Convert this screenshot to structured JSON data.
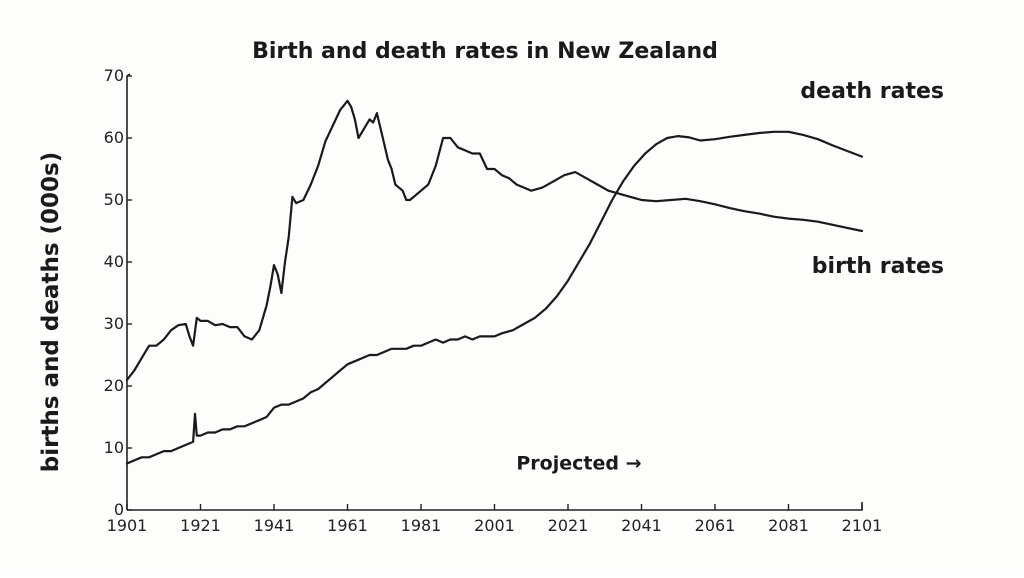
{
  "chart_data": {
    "type": "line",
    "title": "Birth and death rates in New Zealand",
    "xlabel": "",
    "ylabel": "births and deaths (000s)",
    "xlim": [
      1901,
      2101
    ],
    "ylim": [
      0,
      70
    ],
    "x_ticks": [
      "1901",
      "1921",
      "1941",
      "1961",
      "1981",
      "2001",
      "2021",
      "2041",
      "2061",
      "2081",
      "2101"
    ],
    "y_ticks": [
      "0",
      "10",
      "20",
      "30",
      "40",
      "50",
      "60",
      "70"
    ],
    "grid": false,
    "legend": "none",
    "annotation": "Projected →",
    "annotation_x": 2041,
    "series": [
      {
        "name": "birth rates",
        "label_position": "right",
        "x": [
          1901,
          1903,
          1905,
          1907,
          1909,
          1911,
          1913,
          1915,
          1917,
          1918,
          1919,
          1920,
          1921,
          1923,
          1925,
          1927,
          1929,
          1931,
          1933,
          1935,
          1937,
          1939,
          1940,
          1941,
          1942,
          1943,
          1944,
          1945,
          1946,
          1947,
          1949,
          1951,
          1953,
          1955,
          1957,
          1959,
          1961,
          1962,
          1963,
          1964,
          1965,
          1966,
          1967,
          1968,
          1969,
          1970,
          1971,
          1972,
          1973,
          1974,
          1975,
          1976,
          1977,
          1978,
          1979,
          1981,
          1983,
          1985,
          1987,
          1989,
          1991,
          1993,
          1995,
          1997,
          1999,
          2001,
          2003,
          2005,
          2007,
          2009,
          2011,
          2014,
          2017,
          2020,
          2023,
          2026,
          2029,
          2032,
          2035,
          2038,
          2041,
          2045,
          2049,
          2053,
          2057,
          2061,
          2065,
          2069,
          2073,
          2077,
          2081,
          2085,
          2089,
          2093,
          2097,
          2101
        ],
        "values": [
          21,
          22.5,
          24.5,
          26.5,
          26.5,
          27.5,
          29,
          29.8,
          30,
          28,
          26.5,
          31,
          30.5,
          30.5,
          29.8,
          30,
          29.5,
          29.5,
          28,
          27.5,
          29,
          33,
          36,
          39.5,
          38,
          35,
          40,
          44,
          50.5,
          49.5,
          50,
          52.5,
          55.5,
          59.5,
          62,
          64.5,
          66,
          65,
          63,
          60,
          61,
          62,
          63,
          62.5,
          64,
          61.5,
          59,
          56.5,
          55,
          52.5,
          52,
          51.5,
          50,
          50,
          50.5,
          51.5,
          52.5,
          55.5,
          60,
          60,
          58.5,
          58,
          57.5,
          57.5,
          55,
          55,
          54,
          53.5,
          52.5,
          52,
          51.5,
          52,
          53,
          54,
          54.5,
          53.5,
          52.5,
          51.5,
          51,
          50.5,
          50,
          49.8,
          50,
          50.2,
          49.8,
          49.3,
          48.7,
          48.2,
          47.8,
          47.3,
          47,
          46.8,
          46.5,
          46,
          45.5,
          45
        ]
      },
      {
        "name": "death rates",
        "label_position": "top-right",
        "x": [
          1901,
          1903,
          1905,
          1907,
          1909,
          1911,
          1913,
          1915,
          1917,
          1919,
          1919.5,
          1920,
          1921,
          1923,
          1925,
          1927,
          1929,
          1931,
          1933,
          1935,
          1937,
          1939,
          1941,
          1943,
          1945,
          1947,
          1949,
          1951,
          1953,
          1955,
          1957,
          1959,
          1961,
          1963,
          1965,
          1967,
          1969,
          1971,
          1973,
          1975,
          1977,
          1979,
          1981,
          1983,
          1985,
          1987,
          1989,
          1991,
          1993,
          1995,
          1997,
          1999,
          2001,
          2003,
          2006,
          2009,
          2012,
          2015,
          2018,
          2021,
          2024,
          2027,
          2030,
          2033,
          2036,
          2039,
          2042,
          2045,
          2048,
          2051,
          2054,
          2057,
          2061,
          2065,
          2069,
          2073,
          2077,
          2081,
          2085,
          2089,
          2093,
          2097,
          2101
        ],
        "values": [
          7.5,
          8,
          8.5,
          8.5,
          9,
          9.5,
          9.5,
          10,
          10.5,
          11,
          15.5,
          12,
          12,
          12.5,
          12.5,
          13,
          13,
          13.5,
          13.5,
          14,
          14.5,
          15,
          16.5,
          17,
          17,
          17.5,
          18,
          19,
          19.5,
          20.5,
          21.5,
          22.5,
          23.5,
          24,
          24.5,
          25,
          25,
          25.5,
          26,
          26,
          26,
          26.5,
          26.5,
          27,
          27.5,
          27,
          27.5,
          27.5,
          28,
          27.5,
          28,
          28,
          28,
          28.5,
          29,
          30,
          31,
          32.5,
          34.5,
          37,
          40,
          43,
          46.5,
          50,
          53,
          55.5,
          57.5,
          59,
          60,
          60.3,
          60.1,
          59.6,
          59.8,
          60.2,
          60.5,
          60.8,
          61,
          61,
          60.5,
          59.8,
          58.8,
          57.9,
          57
        ]
      }
    ]
  }
}
